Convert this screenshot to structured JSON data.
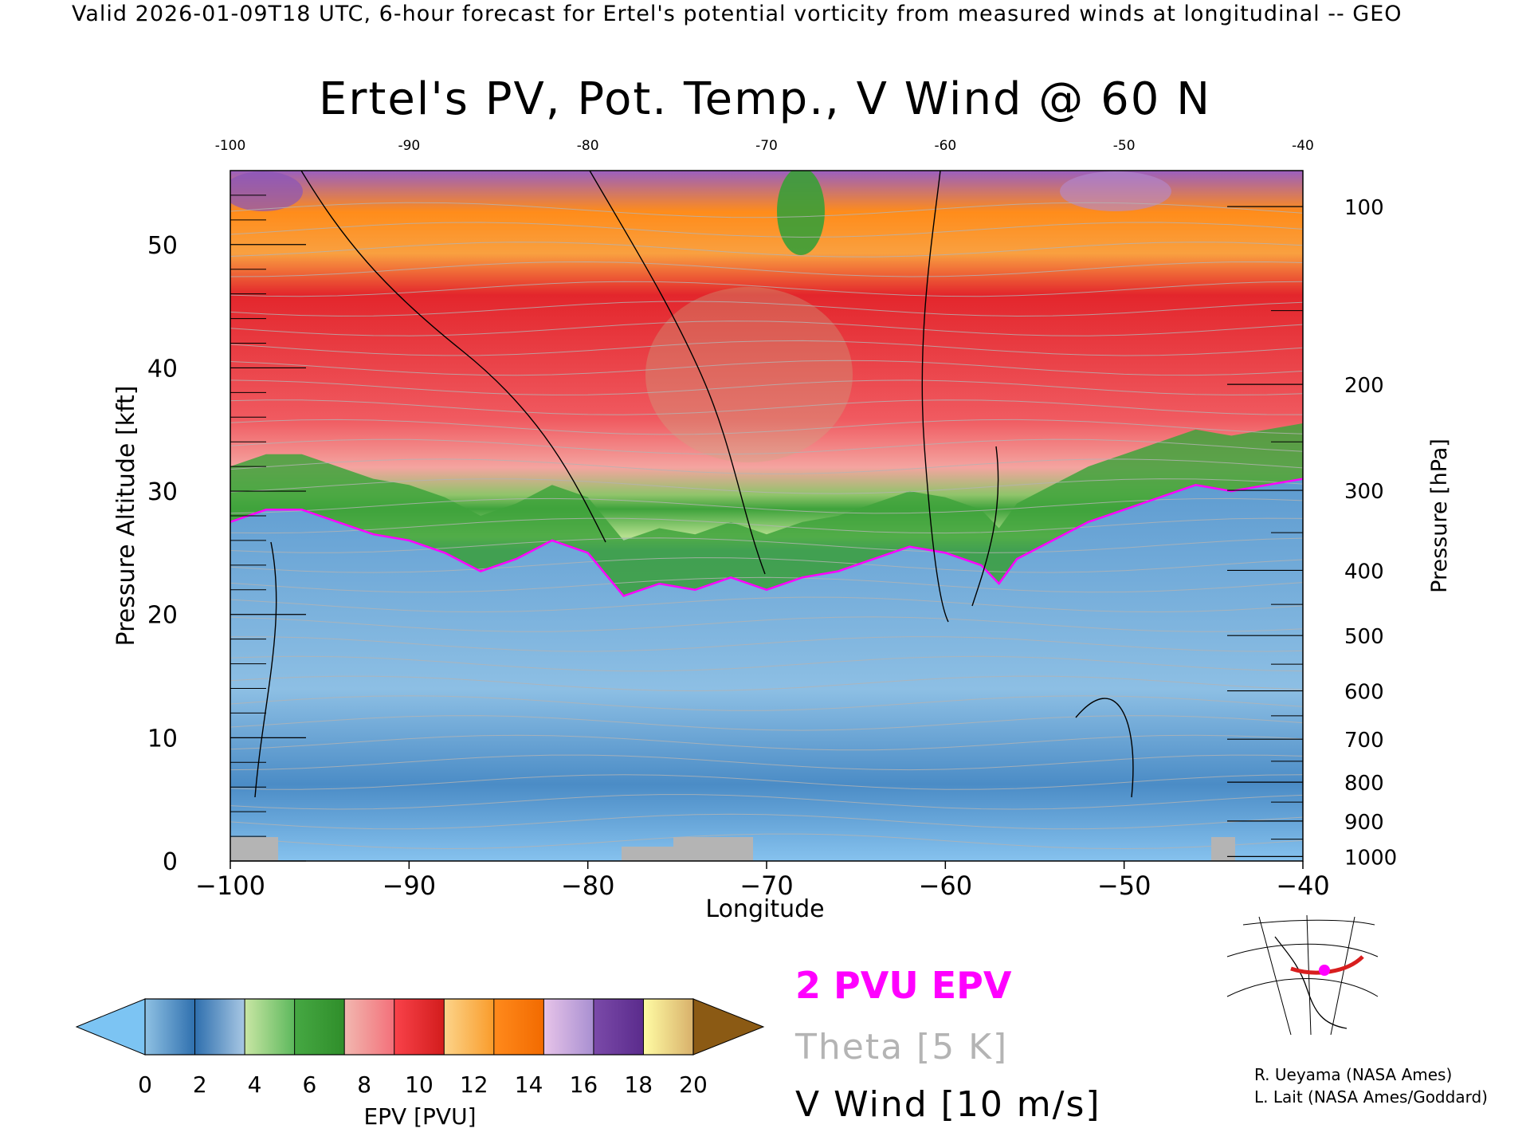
{
  "header": {
    "text": "Valid 2026-01-09T18 UTC, 6-hour forecast for Ertel's potential vorticity from measured winds at longitudinal -- GEO"
  },
  "chart_data": {
    "type": "heatmap",
    "title": "Ertel's PV, Pot. Temp., V Wind @ 60 N",
    "xlabel": "Longitude",
    "ylabel": "Pressure Altitude [kft]",
    "ylabel_right": "Pressure [hPa]",
    "xlim": [
      -100,
      -40
    ],
    "ylim": [
      0,
      56
    ],
    "x_ticks": [
      -100,
      -90,
      -80,
      -70,
      -60,
      -50,
      -40
    ],
    "x_tick_labels": [
      "−100",
      "−90",
      "−80",
      "−70",
      "−60",
      "−50",
      "−40"
    ],
    "top_tick_labels": [
      "-100",
      "-90",
      "-80",
      "-70",
      "-60",
      "-50",
      "-40"
    ],
    "y_ticks": [
      0,
      10,
      20,
      30,
      40,
      50
    ],
    "pressure_ticks": [
      {
        "hPa": 100,
        "label": "100"
      },
      {
        "hPa": 200,
        "label": "200"
      },
      {
        "hPa": 300,
        "label": "300"
      },
      {
        "hPa": 400,
        "label": "400"
      },
      {
        "hPa": 500,
        "label": "500"
      },
      {
        "hPa": 600,
        "label": "600"
      },
      {
        "hPa": 700,
        "label": "700"
      },
      {
        "hPa": 800,
        "label": "800"
      },
      {
        "hPa": 900,
        "label": "900"
      },
      {
        "hPa": 1000,
        "label": "1000"
      }
    ],
    "tropopause_2pvu_kft": [
      [
        -100,
        27.5
      ],
      [
        -98,
        28.5
      ],
      [
        -96,
        28.5
      ],
      [
        -94,
        27.5
      ],
      [
        -92,
        26.5
      ],
      [
        -90,
        26
      ],
      [
        -88,
        25
      ],
      [
        -86,
        23.5
      ],
      [
        -84,
        24.5
      ],
      [
        -82,
        26
      ],
      [
        -80,
        25
      ],
      [
        -78,
        21.5
      ],
      [
        -76,
        22.5
      ],
      [
        -74,
        22
      ],
      [
        -72,
        23
      ],
      [
        -70,
        22
      ],
      [
        -68,
        23
      ],
      [
        -66,
        23.5
      ],
      [
        -64,
        24.5
      ],
      [
        -62,
        25.5
      ],
      [
        -60,
        25
      ],
      [
        -58,
        24
      ],
      [
        -57,
        22.5
      ],
      [
        -56,
        24.5
      ],
      [
        -54,
        26
      ],
      [
        -52,
        27.5
      ],
      [
        -50,
        28.5
      ],
      [
        -48,
        29.5
      ],
      [
        -46,
        30.5
      ],
      [
        -44,
        30
      ],
      [
        -42,
        30.5
      ],
      [
        -40,
        31
      ]
    ],
    "colorbar": {
      "label": "EPV [PVU]",
      "tick_values": [
        0,
        2,
        4,
        6,
        8,
        10,
        12,
        14,
        16,
        18,
        20
      ],
      "tick_labels": [
        "0",
        "2",
        "4",
        "6",
        "8",
        "10",
        "12",
        "14",
        "16",
        "18",
        "20"
      ],
      "underflow_color": "#7cc4f3",
      "overflow_color": "#8b5a14",
      "segments": [
        [
          "#8fc1e3",
          "#2e6fae"
        ],
        [
          "#2e6fae",
          "#a9c8e4"
        ],
        [
          "#c9e6a4",
          "#5cb85c"
        ],
        [
          "#46a843",
          "#2f8e2a"
        ],
        [
          "#f2b8b0",
          "#f36f79"
        ],
        [
          "#f9424a",
          "#d21c1c"
        ],
        [
          "#fcd48a",
          "#f99b2a"
        ],
        [
          "#ff8a1c",
          "#f26a00"
        ],
        [
          "#e7c4e9",
          "#a88fd1"
        ],
        [
          "#7b4aa9",
          "#5a2b8c"
        ],
        [
          "#fffca4",
          "#d8b06a"
        ]
      ]
    },
    "legend": [
      {
        "label": "2 PVU EPV",
        "color": "#ff00ff"
      },
      {
        "label": "Theta [5 K]",
        "color": "#b4b4b4"
      },
      {
        "label": "V Wind [10 m/s]",
        "color": "#000000"
      }
    ]
  },
  "credits": [
    "R. Ueyama (NASA Ames)",
    "L. Lait (NASA Ames/Goddard)"
  ]
}
